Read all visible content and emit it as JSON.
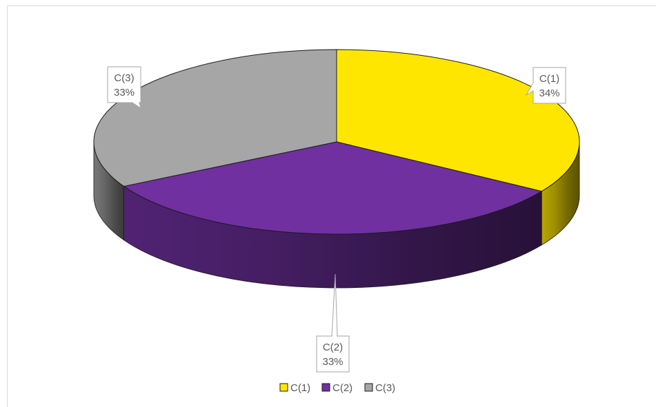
{
  "chart_data": {
    "type": "pie",
    "title": "",
    "legend_position": "bottom",
    "slices": [
      {
        "name": "C(1)",
        "value": 34,
        "label": "34%",
        "color": "#FFE600"
      },
      {
        "name": "C(2)",
        "value": 33,
        "label": "33%",
        "color": "#7030A0"
      },
      {
        "name": "C(3)",
        "value": 33,
        "label": "33%",
        "color": "#A6A6A6"
      }
    ]
  }
}
